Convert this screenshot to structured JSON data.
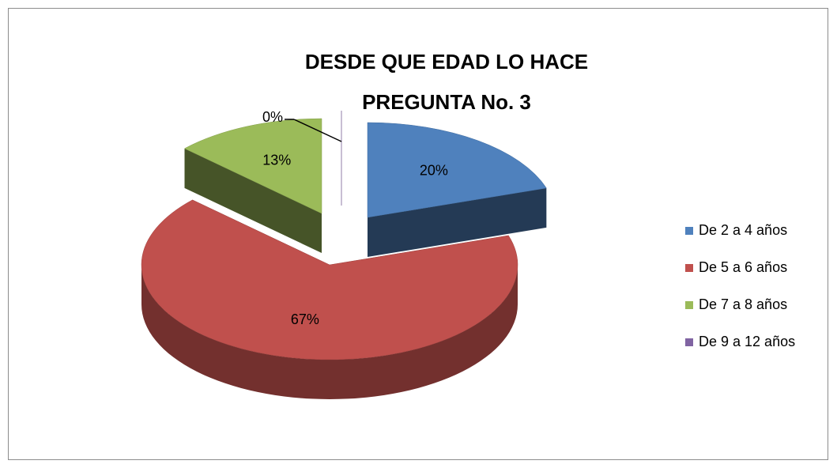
{
  "chart_data": {
    "type": "pie3d",
    "title": [
      "DESDE QUE EDAD LO HACE",
      "PREGUNTA No. 3"
    ],
    "categories": [
      "De 2 a 4 años",
      "De 5 a 6 años",
      "De 7 a 8 años",
      "De 9 a 12 años"
    ],
    "values": [
      20,
      67,
      13,
      0
    ],
    "value_labels": [
      "20%",
      "67%",
      "13%",
      "0%"
    ],
    "colors": [
      "#4f81bd",
      "#c0504d",
      "#9bbb59",
      "#8064a2"
    ],
    "legend": "right"
  }
}
